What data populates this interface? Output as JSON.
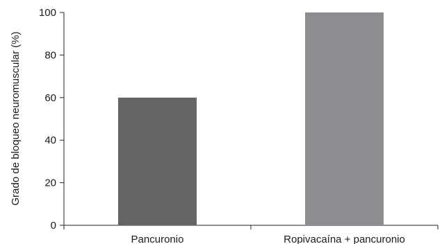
{
  "chart_data": {
    "type": "bar",
    "title": "",
    "ylabel": "Grado de bloqueo neuromuscular (%)",
    "xlabel": "",
    "categories": [
      "Pancuronio",
      "Ropivacaína + pancuronio"
    ],
    "values": [
      60,
      100
    ],
    "ylim": [
      0,
      100
    ],
    "yticks": [
      0,
      20,
      40,
      60,
      80,
      100
    ],
    "ytick_labels": [
      "0",
      "20",
      "40",
      "60",
      "80",
      "100"
    ],
    "bar_colors": [
      "#636466",
      "#8c8d90"
    ],
    "grid": false,
    "legend": "none"
  }
}
